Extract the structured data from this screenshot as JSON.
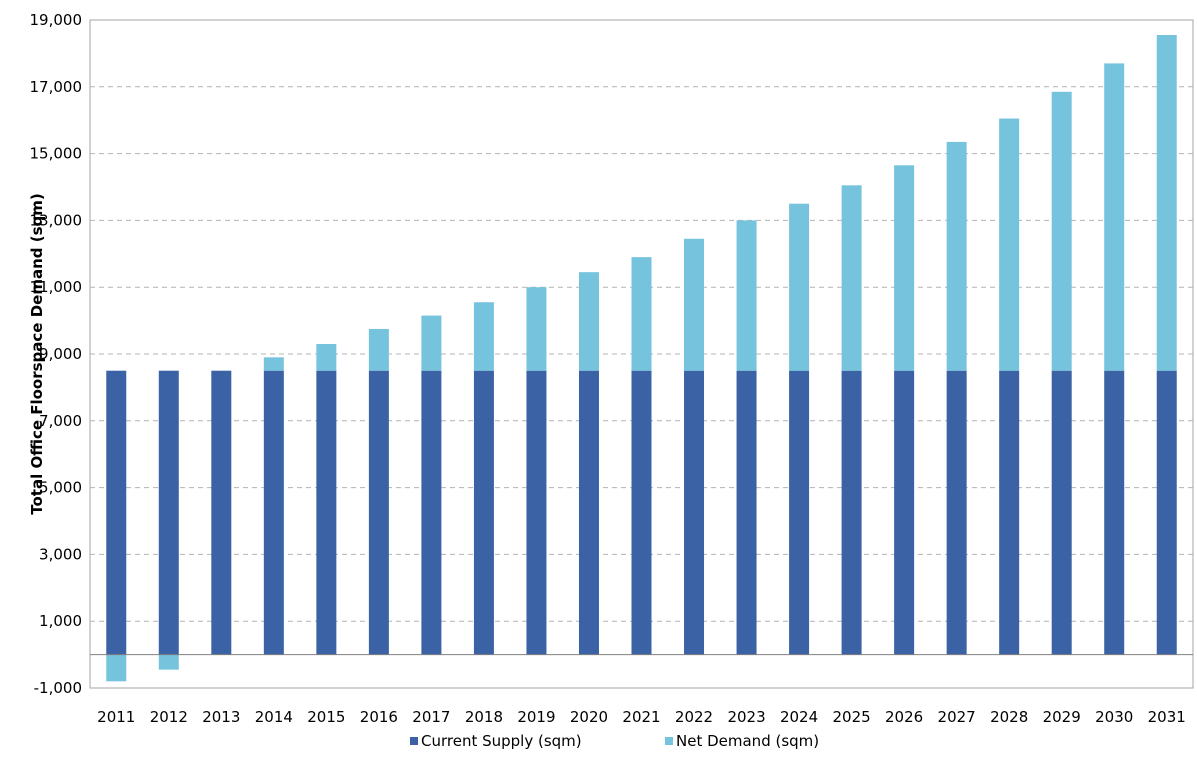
{
  "chart_data": {
    "type": "bar",
    "stacked": true,
    "categories": [
      "2011",
      "2012",
      "2013",
      "2014",
      "2015",
      "2016",
      "2017",
      "2018",
      "2019",
      "2020",
      "2021",
      "2022",
      "2023",
      "2024",
      "2025",
      "2026",
      "2027",
      "2028",
      "2029",
      "2030",
      "2031"
    ],
    "series": [
      {
        "name": "Current Supply (sqm)",
        "color": "#3a62a4",
        "values": [
          8500,
          8500,
          8500,
          8500,
          8500,
          8500,
          8500,
          8500,
          8500,
          8500,
          8500,
          8500,
          8500,
          8500,
          8500,
          8500,
          8500,
          8500,
          8500,
          8500,
          8500
        ]
      },
      {
        "name": "Net Demand (sqm)",
        "color": "#76c3dd",
        "values": [
          -800,
          -450,
          0,
          400,
          800,
          1250,
          1650,
          2050,
          2500,
          2950,
          3400,
          3950,
          4500,
          5000,
          5550,
          6150,
          6850,
          7550,
          8350,
          9200,
          10050
        ]
      }
    ],
    "ylabel": "Total Office Floorspace Demand (sqm)",
    "xlabel": "",
    "ylim": [
      -1000,
      19000
    ],
    "yticks": [
      -1000,
      1000,
      3000,
      5000,
      7000,
      9000,
      11000,
      13000,
      15000,
      17000,
      19000
    ],
    "ytick_labels": [
      "-1,000",
      "1,000",
      "3,000",
      "5,000",
      "7,000",
      "9,000",
      "11,000",
      "13,000",
      "15,000",
      "17,000",
      "19,000"
    ],
    "grid": "horizontal-dashed",
    "legend_position": "bottom-center"
  }
}
